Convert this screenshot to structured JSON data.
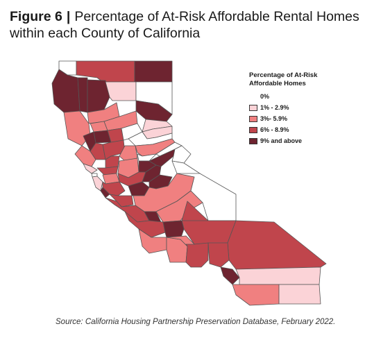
{
  "title": {
    "figure_label": "Figure 6",
    "separator": "|",
    "text": "Percentage of At-Risk Affordable Rental Homes within each County of California"
  },
  "legend": {
    "title": "Percentage of At-Risk Affordable Homes",
    "items": [
      {
        "label": "0%",
        "color": "#ffffff",
        "swatch": false
      },
      {
        "label": "1% - 2.9%",
        "color": "#fbd3d7",
        "swatch": true
      },
      {
        "label": "3%- 5.9%",
        "color": "#f08080",
        "swatch": true
      },
      {
        "label": "6% - 8.9%",
        "color": "#c0454c",
        "swatch": true
      },
      {
        "label": "9% and above",
        "color": "#6e2430",
        "swatch": true
      }
    ]
  },
  "source": "Source: California Housing Partnership Preservation Database, February 2022."
}
